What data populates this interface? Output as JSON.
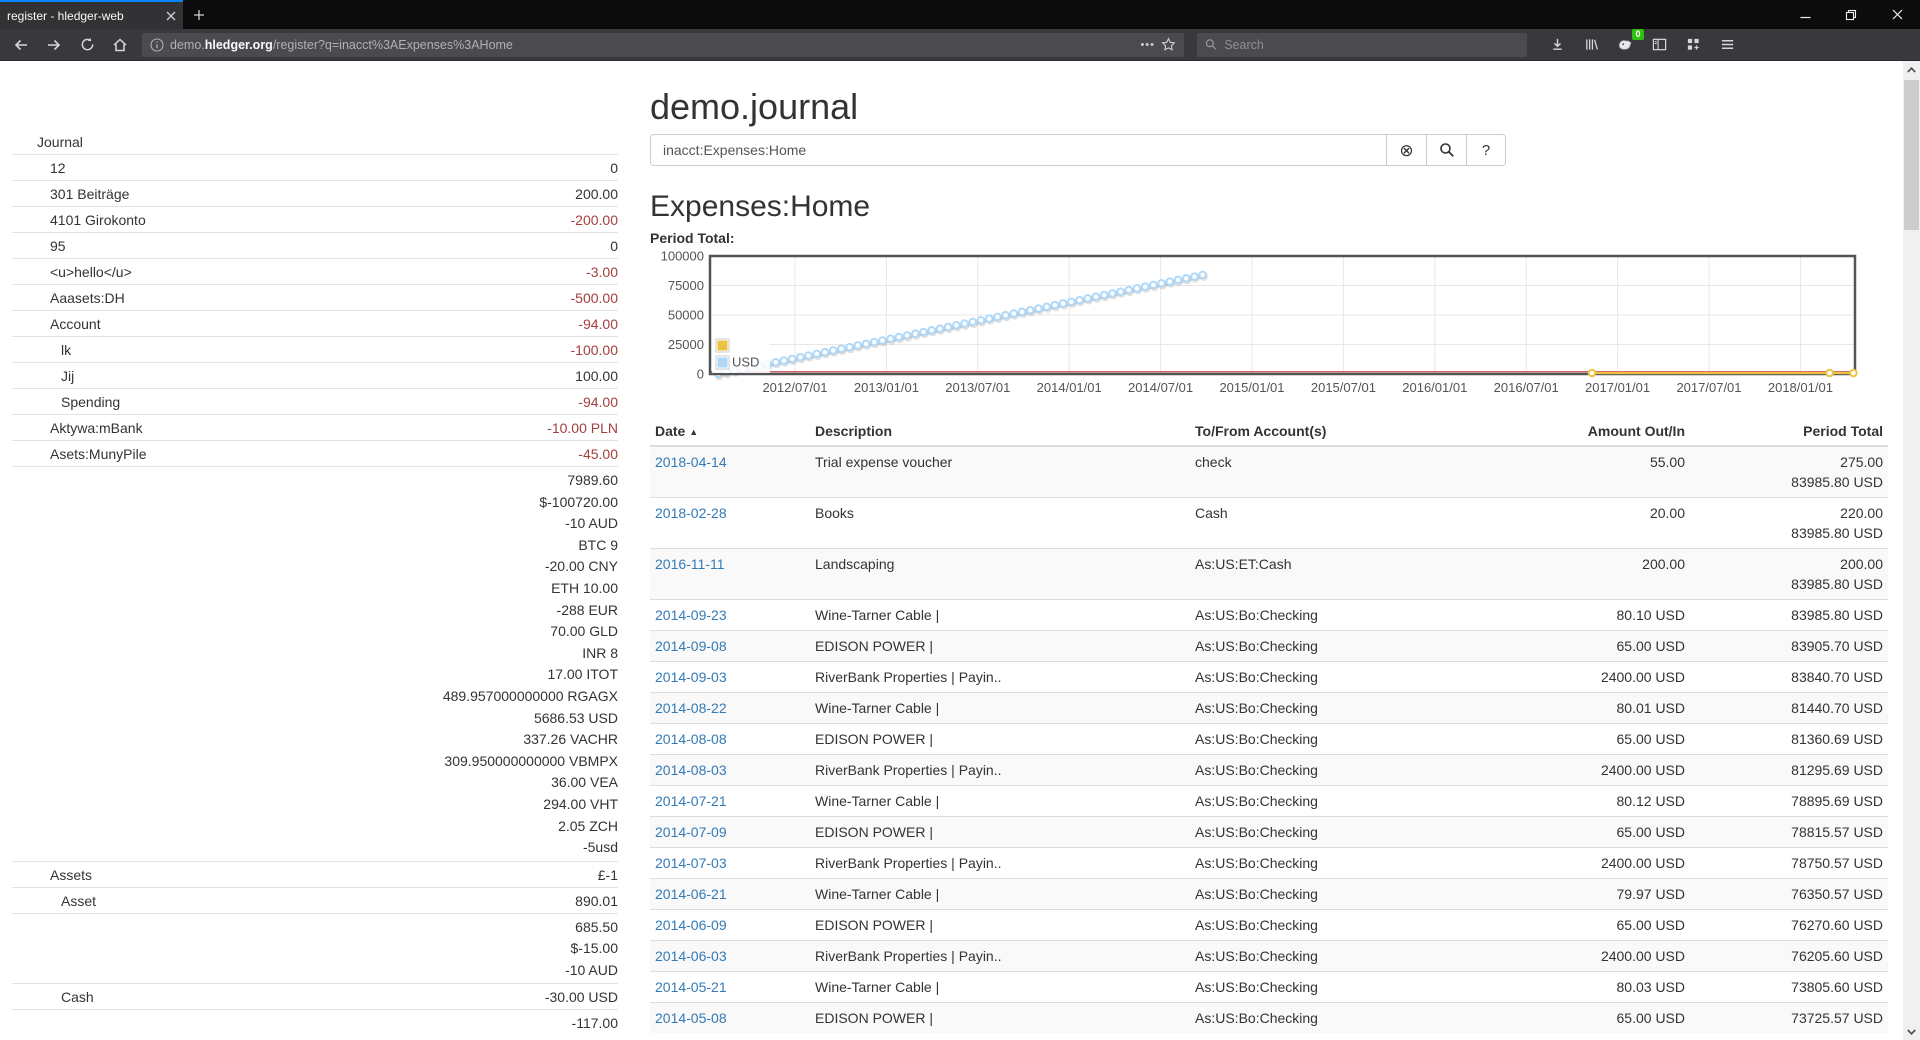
{
  "browser": {
    "tab_title": "register - hledger-web",
    "url": {
      "prefix": "demo.",
      "domain": "hledger.org",
      "path": "/register?q=inacct%3AExpenses%3AHome"
    },
    "search_placeholder": "Search",
    "extension_badge": "0"
  },
  "icons": {
    "clear": "⊗",
    "help": "?",
    "caret_up": "▲",
    "page_action_dots": "•••"
  },
  "colors": {
    "link_blue": "#337ab7",
    "negative_red": "#a33f3d",
    "tab_accent": "#0a84ff",
    "badge_green": "#30c010",
    "series_yellow": "#edc240",
    "series_blue": "#afd8f8",
    "zero_line_red": "#cb4b4b",
    "plot_border": "#545454"
  },
  "sidebar": {
    "rows": [
      {
        "name": "Journal",
        "indent": 0,
        "values": []
      },
      {
        "name": "12",
        "indent": 1,
        "values": [
          {
            "t": "0"
          }
        ]
      },
      {
        "name": "301 Beiträge",
        "indent": 1,
        "values": [
          {
            "t": "200.00"
          }
        ]
      },
      {
        "name": "4101 Girokonto",
        "indent": 1,
        "values": [
          {
            "t": "-200.00",
            "neg": true
          }
        ]
      },
      {
        "name": "95",
        "indent": 1,
        "values": [
          {
            "t": "0"
          }
        ]
      },
      {
        "name": "<u>hello</u>",
        "indent": 1,
        "values": [
          {
            "t": "-3.00",
            "neg": true
          }
        ]
      },
      {
        "name": "Aaasets:DH",
        "indent": 1,
        "values": [
          {
            "t": "-500.00",
            "neg": true
          }
        ]
      },
      {
        "name": "Account",
        "indent": 1,
        "values": [
          {
            "t": "-94.00",
            "neg": true
          }
        ]
      },
      {
        "name": "lk",
        "indent": 2,
        "values": [
          {
            "t": "-100.00",
            "neg": true
          }
        ]
      },
      {
        "name": "Jij",
        "indent": 2,
        "values": [
          {
            "t": "100.00"
          }
        ]
      },
      {
        "name": "Spending",
        "indent": 2,
        "values": [
          {
            "t": "-94.00",
            "neg": true
          }
        ]
      },
      {
        "name": "Aktywa:mBank",
        "indent": 1,
        "values": [
          {
            "t": "-10.00 PLN",
            "neg": true
          }
        ]
      },
      {
        "name": "Asets:MunyPile",
        "indent": 1,
        "values": [
          {
            "t": "-45.00",
            "neg": true
          }
        ]
      },
      {
        "name": "",
        "indent": 1,
        "values": [
          {
            "t": "7989.60"
          },
          {
            "t": "$-100720.00"
          },
          {
            "t": "-10 AUD"
          },
          {
            "t": "BTC 9"
          },
          {
            "t": "-20.00 CNY"
          },
          {
            "t": "ETH 10.00"
          },
          {
            "t": "-288 EUR"
          },
          {
            "t": "70.00 GLD"
          },
          {
            "t": "INR 8"
          },
          {
            "t": "17.00 ITOT"
          },
          {
            "t": "489.957000000000 RGAGX"
          },
          {
            "t": "5686.53 USD"
          },
          {
            "t": "337.26 VACHR"
          },
          {
            "t": "309.950000000000 VBMPX"
          },
          {
            "t": "36.00 VEA"
          },
          {
            "t": "294.00 VHT"
          },
          {
            "t": "2.05 ZCH"
          },
          {
            "t": "-5usd"
          }
        ]
      },
      {
        "name": "Assets",
        "indent": 1,
        "values": [
          {
            "t": "£-1"
          }
        ]
      },
      {
        "name": "Asset",
        "indent": 2,
        "values": [
          {
            "t": "890.01"
          }
        ]
      },
      {
        "name": "",
        "indent": 2,
        "values": [
          {
            "t": "685.50"
          },
          {
            "t": "$-15.00"
          },
          {
            "t": "-10 AUD"
          }
        ]
      },
      {
        "name": "Cash",
        "indent": 2,
        "values": [
          {
            "t": "-30.00 USD"
          }
        ]
      },
      {
        "name": "",
        "indent": 2,
        "values": [
          {
            "t": "-117.00"
          }
        ]
      }
    ]
  },
  "main": {
    "title": "demo.journal",
    "query": "inacct:Expenses:Home",
    "heading": "Expenses:Home",
    "period_total_label": "Period Total:"
  },
  "chart_data": {
    "type": "line",
    "title": "Period Total:",
    "x_ticks": [
      "2012/07/01",
      "2013/01/01",
      "2013/07/01",
      "2014/01/01",
      "2014/07/01",
      "2015/01/01",
      "2015/07/01",
      "2016/01/01",
      "2016/07/01",
      "2017/01/01",
      "2017/07/01",
      "2018/01/01"
    ],
    "x_first_tick_decimal_year": 2012.5,
    "x_tick_interval_years": 0.5,
    "y_ticks": [
      "0",
      "25000",
      "50000",
      "75000",
      "100000"
    ],
    "ylim": [
      0,
      100000
    ],
    "grid": true,
    "legend_position": "bottom-left",
    "legend": [
      {
        "label": "",
        "color": "#edc240"
      },
      {
        "label": "USD",
        "color": "#afd8f8"
      }
    ],
    "series": [
      {
        "name": "USD",
        "color": "#afd8f8",
        "shape": "linear-ramp-with-markers",
        "start": [
          2012.08,
          0
        ],
        "end": [
          2014.73,
          83985.8
        ],
        "n_markers": 60
      },
      {
        "name": "",
        "color": "#edc240",
        "points": [
          [
            2016.86,
            0
          ],
          [
            2018.16,
            0
          ],
          [
            2018.29,
            0
          ]
        ]
      }
    ],
    "zero_line_color": "#cb4b4b",
    "plot_border_color": "#545454"
  },
  "register": {
    "columns": [
      "Date",
      "Description",
      "To/From Account(s)",
      "Amount Out/In",
      "Period Total"
    ],
    "rows": [
      {
        "date": "2018-04-14",
        "description": "Trial expense voucher",
        "account": "check",
        "amount": "55.00",
        "totals": [
          "275.00",
          "83985.80 USD"
        ]
      },
      {
        "date": "2018-02-28",
        "description": "Books",
        "account": "Cash",
        "amount": "20.00",
        "totals": [
          "220.00",
          "83985.80 USD"
        ]
      },
      {
        "date": "2016-11-11",
        "description": "Landscaping",
        "account": "As:US:ET:Cash",
        "amount": "200.00",
        "totals": [
          "200.00",
          "83985.80 USD"
        ]
      },
      {
        "date": "2014-09-23",
        "description": "Wine-Tarner Cable |",
        "account": "As:US:Bo:Checking",
        "amount": "80.10 USD",
        "totals": [
          "83985.80 USD"
        ]
      },
      {
        "date": "2014-09-08",
        "description": "EDISON POWER |",
        "account": "As:US:Bo:Checking",
        "amount": "65.00 USD",
        "totals": [
          "83905.70 USD"
        ]
      },
      {
        "date": "2014-09-03",
        "description": "RiverBank Properties | Payin..",
        "account": "As:US:Bo:Checking",
        "amount": "2400.00 USD",
        "totals": [
          "83840.70 USD"
        ]
      },
      {
        "date": "2014-08-22",
        "description": "Wine-Tarner Cable |",
        "account": "As:US:Bo:Checking",
        "amount": "80.01 USD",
        "totals": [
          "81440.70 USD"
        ]
      },
      {
        "date": "2014-08-08",
        "description": "EDISON POWER |",
        "account": "As:US:Bo:Checking",
        "amount": "65.00 USD",
        "totals": [
          "81360.69 USD"
        ]
      },
      {
        "date": "2014-08-03",
        "description": "RiverBank Properties | Payin..",
        "account": "As:US:Bo:Checking",
        "amount": "2400.00 USD",
        "totals": [
          "81295.69 USD"
        ]
      },
      {
        "date": "2014-07-21",
        "description": "Wine-Tarner Cable |",
        "account": "As:US:Bo:Checking",
        "amount": "80.12 USD",
        "totals": [
          "78895.69 USD"
        ]
      },
      {
        "date": "2014-07-09",
        "description": "EDISON POWER |",
        "account": "As:US:Bo:Checking",
        "amount": "65.00 USD",
        "totals": [
          "78815.57 USD"
        ]
      },
      {
        "date": "2014-07-03",
        "description": "RiverBank Properties | Payin..",
        "account": "As:US:Bo:Checking",
        "amount": "2400.00 USD",
        "totals": [
          "78750.57 USD"
        ]
      },
      {
        "date": "2014-06-21",
        "description": "Wine-Tarner Cable |",
        "account": "As:US:Bo:Checking",
        "amount": "79.97 USD",
        "totals": [
          "76350.57 USD"
        ]
      },
      {
        "date": "2014-06-09",
        "description": "EDISON POWER |",
        "account": "As:US:Bo:Checking",
        "amount": "65.00 USD",
        "totals": [
          "76270.60 USD"
        ]
      },
      {
        "date": "2014-06-03",
        "description": "RiverBank Properties | Payin..",
        "account": "As:US:Bo:Checking",
        "amount": "2400.00 USD",
        "totals": [
          "76205.60 USD"
        ]
      },
      {
        "date": "2014-05-21",
        "description": "Wine-Tarner Cable |",
        "account": "As:US:Bo:Checking",
        "amount": "80.03 USD",
        "totals": [
          "73805.60 USD"
        ]
      },
      {
        "date": "2014-05-08",
        "description": "EDISON POWER |",
        "account": "As:US:Bo:Checking",
        "amount": "65.00 USD",
        "totals": [
          "73725.57 USD"
        ]
      }
    ]
  }
}
